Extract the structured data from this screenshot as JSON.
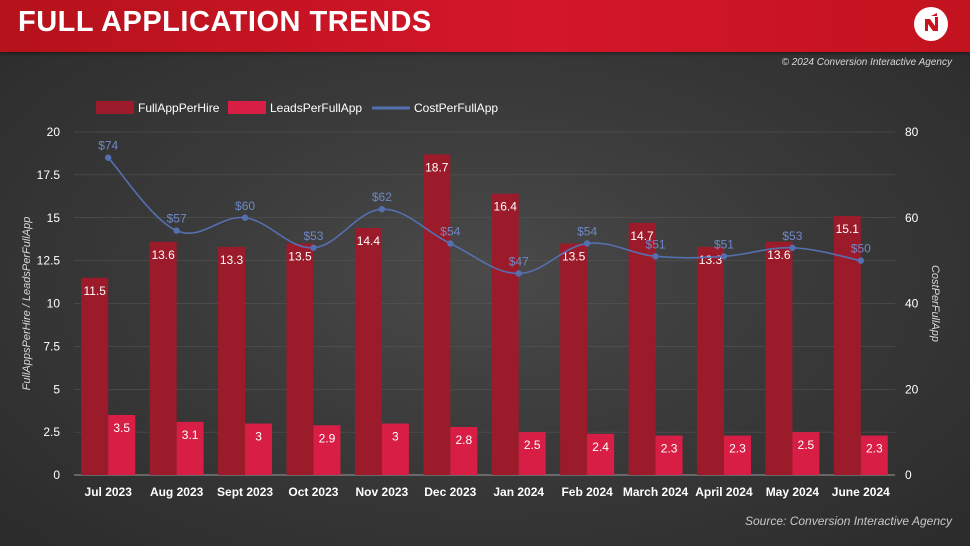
{
  "header": {
    "title": "FULL APPLICATION TRENDS",
    "copyright": "© 2024 Conversion Interactive Agency",
    "source": "Source: Conversion Interactive Agency",
    "logo_icon": "brand-logo-icon"
  },
  "colors": {
    "full_app_per_hire": "#9b1b2a",
    "leads_per_full_app": "#d81e45",
    "cost_per_full_app": "#5570b0",
    "header": "#c8141f"
  },
  "chart_data": {
    "type": "bar",
    "categories": [
      "Jul 2023",
      "Aug 2023",
      "Sept 2023",
      "Oct 2023",
      "Nov 2023",
      "Dec 2023",
      "Jan 2024",
      "Feb 2024",
      "March 2024",
      "April 2024",
      "May 2024",
      "June 2024"
    ],
    "series": [
      {
        "name": "FullAppPerHire",
        "type": "bar",
        "axis": "left",
        "values": [
          11.5,
          13.6,
          13.3,
          13.5,
          14.4,
          18.7,
          16.4,
          13.5,
          14.7,
          13.3,
          13.6,
          15.1
        ]
      },
      {
        "name": "LeadsPerFullApp",
        "type": "bar",
        "axis": "left",
        "values": [
          3.5,
          3.1,
          3,
          2.9,
          3,
          2.8,
          2.5,
          2.4,
          2.3,
          2.3,
          2.5,
          2.3
        ]
      },
      {
        "name": "CostPerFullApp",
        "type": "line",
        "axis": "right",
        "values": [
          74,
          57,
          60,
          53,
          62,
          54,
          47,
          54,
          51,
          51,
          53,
          50
        ],
        "labels": [
          "$74",
          "$57",
          "$60",
          "$53",
          "$62",
          "$54",
          "$47",
          "$54",
          "$51",
          "$51",
          "$53",
          "$50"
        ]
      }
    ],
    "ylabel_left": "FullAppsPerHire / LeadsPerFullApp",
    "ylabel_right": "CostPerFullApp",
    "ylim_left": [
      0,
      20
    ],
    "ylim_right": [
      0,
      80
    ],
    "yticks_left": [
      "0",
      "2.5",
      "5",
      "7.5",
      "10",
      "12.5",
      "15",
      "17.5",
      "20"
    ],
    "yticks_right": [
      "0",
      "20",
      "40",
      "60",
      "80"
    ],
    "legend_position": "top-left",
    "grid": true
  }
}
